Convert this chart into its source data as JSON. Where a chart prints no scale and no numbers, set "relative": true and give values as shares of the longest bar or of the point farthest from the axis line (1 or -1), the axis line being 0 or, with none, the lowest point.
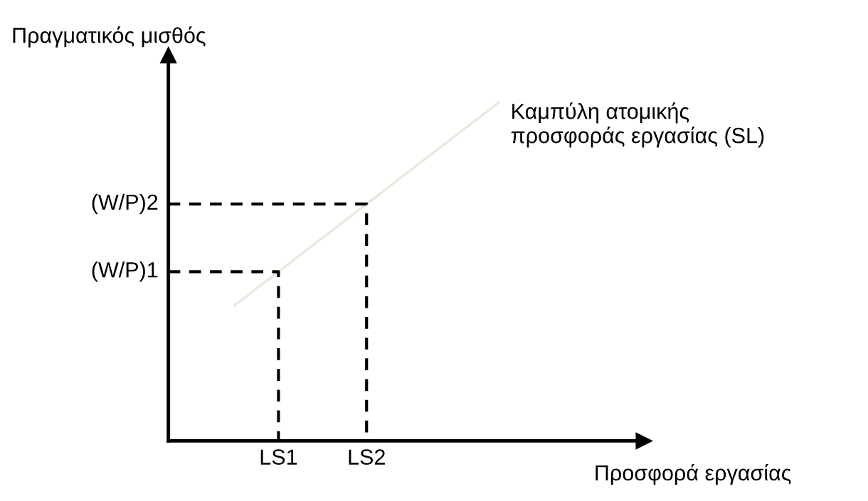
{
  "chart_data": {
    "type": "line",
    "relative": true,
    "xlabel": "Προσφορά εργασίας",
    "ylabel": "Πραγματικός μισθός",
    "categories": [
      null,
      null,
      null,
      null,
      null,
      "LS1",
      null,
      null,
      null,
      "LS2",
      null,
      null,
      null,
      null,
      null,
      null,
      null,
      null,
      null,
      null,
      null,
      null
    ],
    "series": [
      {
        "color": "#ebe8dc",
        "values": [
          null,
          null,
          null,
          0.4,
          0.45,
          0.5,
          0.55,
          0.6,
          0.65,
          0.7,
          0.75,
          0.8,
          0.85,
          0.9,
          0.95,
          1.0,
          null,
          null,
          null,
          null,
          null,
          null
        ]
      }
    ],
    "annotations": [
      "Καμπύλη ατομικής\nπροσφοράς εργασίας (SL)",
      "(W/P)1",
      "(W/P)2"
    ]
  }
}
